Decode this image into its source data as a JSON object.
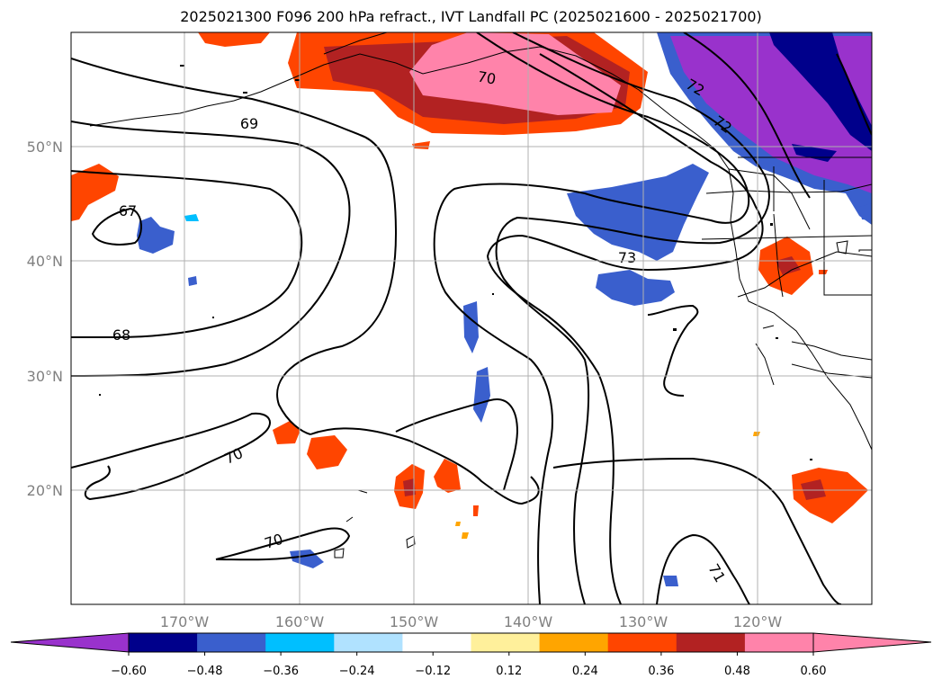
{
  "title": "2025021300 F096 200 hPa refract., IVT Landfall PC (2025021600 - 2025021700)",
  "lat_labels": [
    "50°N",
    "40°N",
    "30°N",
    "20°N"
  ],
  "lon_labels": [
    "170°W",
    "160°W",
    "150°W",
    "140°W",
    "130°W",
    "120°W"
  ],
  "colorbar": {
    "colors": [
      "#9932cc",
      "#00008b",
      "#3a5fcd",
      "#00bfff",
      "#b0e2ff",
      "#ffffff",
      "#fff09b",
      "#ffa500",
      "#ff4500",
      "#b22222",
      "#ff83aa",
      "#ff83aa"
    ],
    "under_color": "#9932cc",
    "over_color": "#ff83aa",
    "tick_labels": [
      "−0.60",
      "−0.48",
      "−0.36",
      "−0.24",
      "−0.12",
      "0.12",
      "0.24",
      "0.36",
      "0.48",
      "0.60"
    ]
  },
  "contour_labels": [
    {
      "text": "70"
    },
    {
      "text": "69"
    },
    {
      "text": "67"
    },
    {
      "text": "68"
    },
    {
      "text": "73"
    },
    {
      "text": "72"
    },
    {
      "text": "72"
    },
    {
      "text": "70"
    },
    {
      "text": "70"
    },
    {
      "text": "71"
    }
  ]
}
